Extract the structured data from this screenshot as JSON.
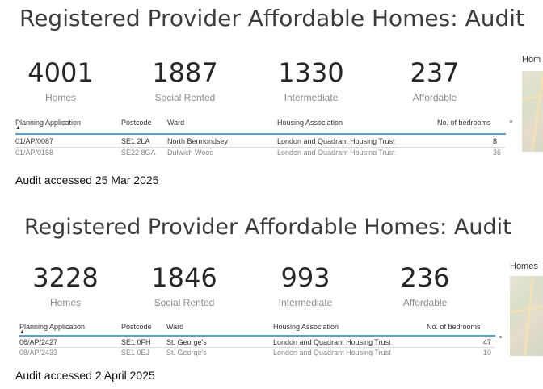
{
  "panels": [
    {
      "title": "Registered Provider Affordable Homes: Audit",
      "kpis": [
        {
          "value": "4001",
          "label": "Homes"
        },
        {
          "value": "1887",
          "label": "Social Rented"
        },
        {
          "value": "1330",
          "label": "Intermediate"
        },
        {
          "value": "237",
          "label": "Affordable"
        }
      ],
      "map_label": "Hom",
      "columns": [
        "Planning Application",
        "Postcode",
        "Ward",
        "Housing Association",
        "No. of bedrooms"
      ],
      "row": {
        "application": "01/AP/0087",
        "postcode": "SE1 2LA",
        "ward": "North Bermondsey",
        "association": "London and Quadrant Housing Trust",
        "bedrooms": "8"
      },
      "next_row_partial": {
        "application": "01/AP/0158",
        "postcode": "SE22 8GA",
        "ward": "Dulwich Wood",
        "association": "London and Quadrant Housing Trust",
        "bedrooms": "36"
      }
    },
    {
      "title": "Registered Provider Affordable Homes: Audit",
      "kpis": [
        {
          "value": "3228",
          "label": "Homes"
        },
        {
          "value": "1846",
          "label": "Social Rented"
        },
        {
          "value": "993",
          "label": "Intermediate"
        },
        {
          "value": "236",
          "label": "Affordable"
        }
      ],
      "map_label": "Homes",
      "columns": [
        "Planning Application",
        "Postcode",
        "Ward",
        "Housing Association",
        "No. of bedrooms"
      ],
      "row": {
        "application": "06/AP/2427",
        "postcode": "SE1 0FH",
        "ward": "St. George's",
        "association": "London and Quadrant Housing Trust",
        "bedrooms": "47"
      },
      "next_row_partial": {
        "application": "08/AP/2433",
        "postcode": "SE1 0EJ",
        "ward": "St. George's",
        "association": "London and Quadrant Housing Trust",
        "bedrooms": "10"
      }
    }
  ],
  "captions": [
    "Audit accessed 25 Mar 2025",
    "Audit accessed 2 April 2025"
  ],
  "colors": {
    "header_underline": "#5aa0d8",
    "kpi_value": "#262626",
    "kpi_label": "#8a8a8a"
  }
}
